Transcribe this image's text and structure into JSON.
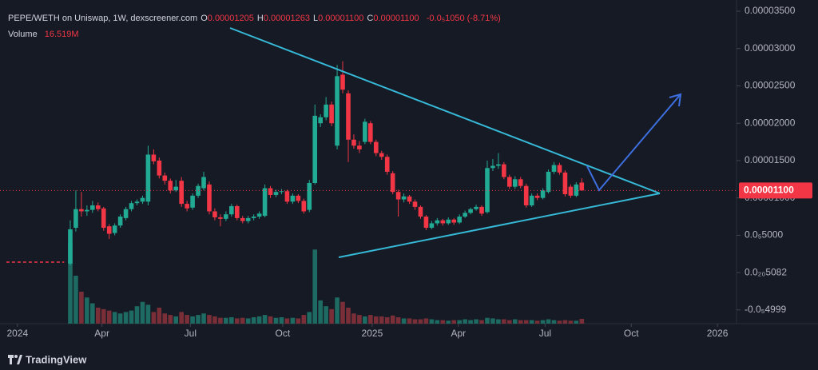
{
  "chart_data": {
    "type": "candlestick",
    "legend": {
      "symbol": "PEPE/WETH on Uniswap, 1W, dexscreener.com",
      "ohlc": [
        {
          "key": "O",
          "label": "0.00001205"
        },
        {
          "key": "H",
          "label": "0.00001263"
        },
        {
          "key": "L",
          "label": "0.00001100"
        },
        {
          "key": "C",
          "label": "0.00001100"
        }
      ],
      "change": "-0.0₅1050 (-8.71%)",
      "volume_name": "Volume",
      "volume_label": "16.519M"
    },
    "x": [
      0,
      1,
      2,
      3,
      4,
      5,
      6,
      7,
      8,
      9,
      10,
      11,
      12,
      13,
      14,
      15,
      16,
      17,
      18,
      19,
      20,
      21,
      22,
      23,
      24,
      25,
      26,
      27,
      28,
      29,
      30,
      31,
      32,
      33,
      34,
      35,
      36,
      37,
      38,
      39,
      40,
      41,
      42,
      43,
      44,
      45,
      46,
      47,
      48,
      49,
      50,
      51,
      52,
      53,
      54,
      55,
      56,
      57,
      58,
      59,
      60,
      61,
      62,
      63,
      64,
      65,
      66,
      67,
      68,
      69,
      70,
      71,
      72,
      73,
      74,
      75,
      76,
      77,
      78,
      79,
      80,
      81,
      82,
      83,
      84,
      85,
      86,
      87,
      88,
      89,
      90,
      91,
      92
    ],
    "open": [
      1.2e-06,
      6e-06,
      8.5e-06,
      8.2e-06,
      8.4e-06,
      9e-06,
      8.6e-06,
      6.2e-06,
      5.3e-06,
      6.3e-06,
      7.3e-06,
      8.5e-06,
      9.3e-06,
      9.5e-06,
      9.5e-06,
      1.58e-05,
      1.5e-05,
      1.3e-05,
      1.23e-05,
      1.1e-05,
      1.23e-05,
      9.2e-06,
      8.7e-06,
      1.03e-05,
      1.13e-05,
      1.18e-05,
      8.2e-06,
      7.4e-06,
      7.2e-06,
      7.8e-06,
      8.9e-06,
      7.3e-06,
      6.9e-06,
      7.3e-06,
      7.5e-06,
      7.6e-06,
      1.13e-05,
      1.04e-05,
      1.08e-05,
      1.09e-05,
      9.5e-06,
      1.03e-05,
      9.6e-06,
      8.4e-06,
      1.2e-05,
      2e-05,
      2.08e-05,
      2.25e-05,
      1.7e-05,
      2.65e-05,
      2.4e-05,
      1.78e-05,
      1.7e-05,
      1.75e-05,
      2e-05,
      1.75e-05,
      1.6e-05,
      1.55e-05,
      1.33e-05,
      1.08e-05,
      9.8e-06,
      1.02e-05,
      9.5e-06,
      8.8e-06,
      7.5e-06,
      6e-06,
      6.6e-06,
      7e-06,
      6.6e-06,
      7.1e-06,
      6.7e-06,
      7.5e-06,
      8e-06,
      8.5e-06,
      8.8e-06,
      8.1e-06,
      1.4e-05,
      1.43e-05,
      1.45e-05,
      1.28e-05,
      1.15e-05,
      1.25e-05,
      1.16e-05,
      9e-06,
      1.03e-05,
      1e-05,
      1.08e-05,
      1.35e-05,
      1.44e-05,
      1.34e-05,
      1.15e-05,
      1.03e-05,
      1.205e-05
    ],
    "high": [
      7e-06,
      1.1e-05,
      1.08e-05,
      9e-06,
      9.6e-06,
      9.4e-06,
      8.8e-06,
      6.5e-06,
      6.6e-06,
      7.8e-06,
      8.8e-06,
      9.6e-06,
      9.8e-06,
      1.03e-05,
      1.7e-05,
      1.65e-05,
      1.54e-05,
      1.34e-05,
      1.26e-05,
      1.24e-05,
      1.28e-05,
      9.6e-06,
      1.06e-05,
      1.19e-05,
      1.35e-05,
      1.22e-05,
      8.6e-06,
      7.8e-06,
      8.2e-06,
      9.2e-06,
      9.1e-06,
      7.6e-06,
      7.6e-06,
      7.8e-06,
      8.2e-06,
      1.18e-05,
      1.16e-05,
      1.11e-05,
      1.12e-05,
      1.11e-05,
      1.06e-05,
      1.05e-05,
      9.9e-06,
      1.24e-05,
      2.25e-05,
      2.12e-05,
      2.35e-05,
      2.29e-05,
      2.78e-05,
      2.83e-05,
      2.44e-05,
      1.85e-05,
      1.76e-05,
      2.06e-05,
      2.03e-05,
      1.78e-05,
      1.63e-05,
      1.58e-05,
      1.36e-05,
      1.11e-05,
      1.06e-05,
      1.04e-05,
      9.8e-06,
      9e-06,
      7.7e-06,
      6.9e-06,
      7.3e-06,
      7.2e-06,
      7.4e-06,
      7.3e-06,
      7.8e-06,
      8.3e-06,
      8.7e-06,
      9.1e-06,
      9e-06,
      1.5e-05,
      1.52e-05,
      1.6e-05,
      1.48e-05,
      1.31e-05,
      1.29e-05,
      1.28e-05,
      1.19e-05,
      1.06e-05,
      1.06e-05,
      1.13e-05,
      1.38e-05,
      1.48e-05,
      1.47e-05,
      1.37e-05,
      1.18e-05,
      1.21e-05,
      1.263e-05
    ],
    "low": [
      1e-06,
      5.5e-06,
      7.5e-06,
      7.6e-06,
      8e-06,
      8.2e-06,
      5.6e-06,
      4.5e-06,
      5e-06,
      6e-06,
      7e-06,
      8.2e-06,
      9e-06,
      9.2e-06,
      9e-06,
      1.45e-05,
      1.26e-05,
      1.18e-05,
      1.06e-05,
      1.08e-05,
      8.8e-06,
      8.2e-06,
      8.4e-06,
      1e-05,
      1.1e-05,
      7.8e-06,
      7e-06,
      6.2e-06,
      6.9e-06,
      7.5e-06,
      7e-06,
      6.6e-06,
      6.6e-06,
      7e-06,
      7.2e-06,
      7.4e-06,
      1e-05,
      1.01e-05,
      1.05e-05,
      9.2e-06,
      9.2e-06,
      9.3e-06,
      7.9e-06,
      8.1e-06,
      1.18e-05,
      1.95e-05,
      2.04e-05,
      1.96e-05,
      1.65e-05,
      2.4e-05,
      1.48e-05,
      1.66e-05,
      1.6e-05,
      1.72e-05,
      1.72e-05,
      1.56e-05,
      1.51e-05,
      1.31e-05,
      1.05e-05,
      7.5e-06,
      9.4e-06,
      9.2e-06,
      8.4e-06,
      7.2e-06,
      5.7e-06,
      5.8e-06,
      6.3e-06,
      6.3e-06,
      6.4e-06,
      6.4e-06,
      6.5e-06,
      7.3e-06,
      7.8e-06,
      8.3e-06,
      7.6e-06,
      7.9e-06,
      1.36e-05,
      1.39e-05,
      1.25e-05,
      1.12e-05,
      1.12e-05,
      1.13e-05,
      8.7e-06,
      8.8e-06,
      9.7e-06,
      9.8e-06,
      1.06e-05,
      1.32e-05,
      1.31e-05,
      1.02e-05,
      1e-05,
      1.01e-05,
      1.1e-05
    ],
    "close": [
      5.8e-06,
      8.5e-06,
      8.2e-06,
      8.4e-06,
      9e-06,
      8.5e-06,
      6e-06,
      5.2e-06,
      6.3e-06,
      7.5e-06,
      8.5e-06,
      9.3e-06,
      9.5e-06,
      1e-05,
      1.58e-05,
      1.49e-05,
      1.3e-05,
      1.23e-05,
      1.1e-05,
      1.15e-05,
      9.2e-06,
      8.6e-06,
      1.03e-05,
      1.16e-05,
      1.28e-05,
      8.2e-06,
      7.4e-06,
      7.2e-06,
      7.8e-06,
      8.9e-06,
      7.3e-06,
      6.9e-06,
      7.3e-06,
      7.5e-06,
      7.9e-06,
      1.13e-05,
      1.04e-05,
      1.08e-05,
      1.09e-05,
      9.5e-06,
      1.03e-05,
      9.6e-06,
      8.2e-06,
      1.2e-05,
      2.1e-05,
      2.08e-05,
      2.25e-05,
      2e-05,
      2.63e-05,
      2.45e-05,
      1.78e-05,
      1.7e-05,
      1.65e-05,
      2.02e-05,
      1.75e-05,
      1.6e-05,
      1.55e-05,
      1.35e-05,
      1.08e-05,
      9.8e-06,
      1.02e-05,
      9.5e-06,
      8.8e-06,
      7.5e-06,
      6e-06,
      6.6e-06,
      7e-06,
      6.6e-06,
      7.1e-06,
      6.7e-06,
      7.5e-06,
      8e-06,
      8.5e-06,
      8.8e-06,
      7.9e-06,
      1.4e-05,
      1.43e-05,
      1.45e-05,
      1.28e-05,
      1.15e-05,
      1.25e-05,
      1.16e-05,
      9e-06,
      1.03e-05,
      1e-05,
      1.1e-05,
      1.35e-05,
      1.44e-05,
      1.34e-05,
      1.05e-05,
      1.03e-05,
      1.18e-05,
      1.1e-05
    ],
    "volume": [
      280,
      165,
      110,
      90,
      70,
      55,
      50,
      45,
      40,
      35,
      40,
      45,
      60,
      75,
      65,
      40,
      55,
      35,
      30,
      25,
      40,
      30,
      25,
      30,
      35,
      30,
      25,
      20,
      20,
      22,
      18,
      20,
      18,
      22,
      25,
      30,
      25,
      20,
      22,
      18,
      20,
      18,
      30,
      40,
      255,
      80,
      60,
      50,
      90,
      75,
      55,
      35,
      30,
      25,
      30,
      25,
      25,
      22,
      28,
      22,
      18,
      18,
      15,
      15,
      18,
      15,
      12,
      12,
      10,
      12,
      12,
      15,
      12,
      15,
      12,
      20,
      18,
      15,
      15,
      12,
      15,
      12,
      12,
      12,
      10,
      12,
      15,
      12,
      10,
      12,
      10,
      10,
      16.519
    ],
    "vlim": [
      0,
      1100
    ],
    "up_color": "#22ab94",
    "down_color": "#f23645",
    "up_volume_color": "#1d6b62",
    "down_volume_color": "#7a2f38",
    "pre_line": {
      "x": [
        -11.5,
        -1.1
      ],
      "values": [
        1.4e-06,
        1.4e-06
      ],
      "color": "#f23645"
    },
    "last_price": {
      "value": 1.1e-05,
      "label": "0.00001100"
    },
    "xlim": [
      -12.64,
      119.83
    ],
    "xticks": [
      {
        "value": -9.5,
        "label": "2024"
      },
      {
        "value": 5.7,
        "label": "Apr"
      },
      {
        "value": 21.6,
        "label": "Jul"
      },
      {
        "value": 38.2,
        "label": "Oct"
      },
      {
        "value": 54.3,
        "label": "2025"
      },
      {
        "value": 69.8,
        "label": "Apr"
      },
      {
        "value": 85.4,
        "label": "Jul"
      },
      {
        "value": 100.9,
        "label": "Oct"
      },
      {
        "value": 116.4,
        "label": "2026"
      }
    ],
    "ylim": [
      -6.3e-06,
      3.65e-05
    ],
    "yticks": [
      {
        "value": 3.5e-05,
        "label": "0.00003500"
      },
      {
        "value": 3e-05,
        "label": "0.00003000"
      },
      {
        "value": 2.5e-05,
        "label": "0.00002500"
      },
      {
        "value": 2e-05,
        "label": "0.00002000"
      },
      {
        "value": 1.5e-05,
        "label": "0.00001500"
      },
      {
        "value": 1e-05,
        "label": "0.00001000"
      },
      {
        "value": 5e-06,
        "label": "0.0₅5000"
      },
      {
        "value": 5.082e-21,
        "label": "0.0₂₀5082"
      },
      {
        "value": -4.999e-06,
        "label": "-0.0₅4999"
      }
    ],
    "brand": "TradingView"
  }
}
